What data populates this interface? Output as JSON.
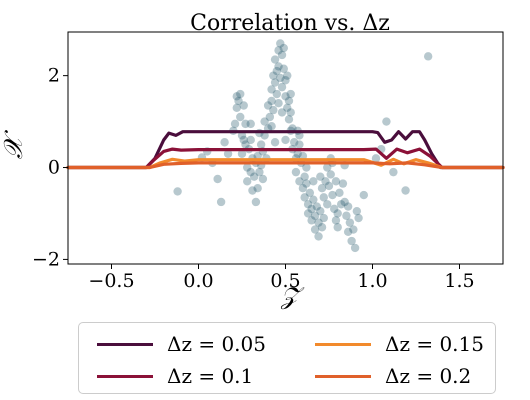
{
  "chart_data": {
    "type": "scatter",
    "title": "Correlation vs. Δz",
    "xlabel": "𝒵",
    "ylabel": "𝒳",
    "xlim": [
      -0.75,
      1.75
    ],
    "ylim": [
      -2.1,
      2.95
    ],
    "x_ticks": [
      -0.5,
      0.0,
      0.5,
      1.0,
      1.5
    ],
    "x_tick_labels": [
      "−0.5",
      "0.0",
      "0.5",
      "1.0",
      "1.5"
    ],
    "y_ticks": [
      -2,
      0,
      2
    ],
    "y_tick_labels": [
      "−2",
      "0",
      "2"
    ],
    "grid": false,
    "legend_placement": "below",
    "scatter": {
      "color": "#1f5566",
      "points": [
        [
          -0.12,
          -0.52
        ],
        [
          0.02,
          0.22
        ],
        [
          0.05,
          0.35
        ],
        [
          0.08,
          0.1
        ],
        [
          0.11,
          -0.25
        ],
        [
          0.13,
          -0.75
        ],
        [
          0.15,
          0.55
        ],
        [
          0.17,
          0.3
        ],
        [
          0.2,
          0.8
        ],
        [
          0.21,
          0.95
        ],
        [
          0.22,
          1.3
        ],
        [
          0.22,
          1.55
        ],
        [
          0.23,
          1.45
        ],
        [
          0.24,
          1.6
        ],
        [
          0.24,
          1.1
        ],
        [
          0.25,
          0.7
        ],
        [
          0.25,
          0.3
        ],
        [
          0.26,
          1.35
        ],
        [
          0.27,
          0.95
        ],
        [
          0.27,
          0.5
        ],
        [
          0.28,
          0.0
        ],
        [
          0.28,
          -0.3
        ],
        [
          0.29,
          0.4
        ],
        [
          0.3,
          -0.1
        ],
        [
          0.3,
          0.6
        ],
        [
          0.31,
          -0.5
        ],
        [
          0.31,
          0.2
        ],
        [
          0.32,
          -0.2
        ],
        [
          0.33,
          0.1
        ],
        [
          0.33,
          -0.75
        ],
        [
          0.34,
          -0.45
        ],
        [
          0.34,
          0.25
        ],
        [
          0.35,
          -0.1
        ],
        [
          0.36,
          0.5
        ],
        [
          0.36,
          0.05
        ],
        [
          0.37,
          -0.25
        ],
        [
          0.37,
          0.35
        ],
        [
          0.38,
          1.0
        ],
        [
          0.38,
          0.7
        ],
        [
          0.39,
          0.2
        ],
        [
          0.4,
          1.35
        ],
        [
          0.4,
          0.85
        ],
        [
          0.41,
          1.1
        ],
        [
          0.42,
          1.7
        ],
        [
          0.42,
          1.45
        ],
        [
          0.43,
          2.0
        ],
        [
          0.43,
          1.25
        ],
        [
          0.44,
          1.85
        ],
        [
          0.44,
          2.35
        ],
        [
          0.45,
          2.1
        ],
        [
          0.45,
          1.6
        ],
        [
          0.46,
          2.55
        ],
        [
          0.46,
          2.2
        ],
        [
          0.47,
          2.7
        ],
        [
          0.47,
          1.95
        ],
        [
          0.48,
          2.45
        ],
        [
          0.48,
          1.75
        ],
        [
          0.49,
          2.6
        ],
        [
          0.49,
          2.15
        ],
        [
          0.5,
          1.9
        ],
        [
          0.5,
          1.55
        ],
        [
          0.51,
          2.0
        ],
        [
          0.51,
          1.3
        ],
        [
          0.52,
          1.45
        ],
        [
          0.52,
          1.05
        ],
        [
          0.53,
          1.2
        ],
        [
          0.53,
          0.8
        ],
        [
          0.54,
          0.85
        ],
        [
          0.54,
          0.4
        ],
        [
          0.55,
          0.55
        ],
        [
          0.56,
          0.2
        ],
        [
          0.56,
          -0.1
        ],
        [
          0.57,
          0.8
        ],
        [
          0.57,
          0.3
        ],
        [
          0.58,
          0.5
        ],
        [
          0.58,
          -0.3
        ],
        [
          0.59,
          0.1
        ],
        [
          0.6,
          -0.45
        ],
        [
          0.6,
          0.25
        ],
        [
          0.61,
          -0.65
        ],
        [
          0.61,
          -0.2
        ],
        [
          0.62,
          -0.35
        ],
        [
          0.63,
          -0.8
        ],
        [
          0.63,
          -1.0
        ],
        [
          0.64,
          -0.55
        ],
        [
          0.65,
          -0.9
        ],
        [
          0.65,
          -1.15
        ],
        [
          0.66,
          -0.7
        ],
        [
          0.67,
          -1.05
        ],
        [
          0.67,
          -1.35
        ],
        [
          0.68,
          -0.85
        ],
        [
          0.69,
          -1.2
        ],
        [
          0.69,
          -1.5
        ],
        [
          0.7,
          -0.95
        ],
        [
          0.71,
          -1.3
        ],
        [
          0.71,
          -0.45
        ],
        [
          0.72,
          -0.65
        ],
        [
          0.72,
          -1.1
        ],
        [
          0.73,
          -0.3
        ],
        [
          0.74,
          -0.8
        ],
        [
          0.74,
          0.0
        ],
        [
          0.75,
          -0.4
        ],
        [
          0.76,
          0.2
        ],
        [
          0.76,
          -0.15
        ],
        [
          0.77,
          0.1
        ],
        [
          0.77,
          -0.6
        ],
        [
          0.78,
          -0.9
        ],
        [
          0.79,
          -1.15
        ],
        [
          0.8,
          -1.0
        ],
        [
          0.8,
          -1.3
        ],
        [
          0.81,
          -0.55
        ],
        [
          0.82,
          -0.8
        ],
        [
          0.83,
          -0.35
        ],
        [
          0.84,
          -0.75
        ],
        [
          0.85,
          -1.05
        ],
        [
          0.86,
          -0.85
        ],
        [
          0.86,
          -1.4
        ],
        [
          0.87,
          -1.2
        ],
        [
          0.88,
          -1.6
        ],
        [
          0.89,
          -1.35
        ],
        [
          0.9,
          -1.75
        ],
        [
          0.91,
          -0.95
        ],
        [
          0.92,
          -1.1
        ],
        [
          0.95,
          -0.6
        ],
        [
          1.02,
          0.2
        ],
        [
          1.05,
          0.4
        ],
        [
          1.08,
          1.0
        ],
        [
          1.12,
          -0.1
        ],
        [
          1.19,
          -0.5
        ],
        [
          1.32,
          2.42
        ],
        [
          0.3,
          0.95
        ],
        [
          0.26,
          0.6
        ],
        [
          0.44,
          0.55
        ],
        [
          0.5,
          0.6
        ],
        [
          0.62,
          0.0
        ],
        [
          0.35,
          0.75
        ],
        [
          0.48,
          1.2
        ],
        [
          0.53,
          1.6
        ],
        [
          0.46,
          1.4
        ],
        [
          0.42,
          0.9
        ],
        [
          0.58,
          0.7
        ],
        [
          0.7,
          -0.2
        ],
        [
          0.66,
          -0.3
        ],
        [
          0.79,
          -0.3
        ],
        [
          0.84,
          0.05
        ]
      ]
    },
    "series": [
      {
        "name": "Δz = 0.05",
        "color": "#4a0e3c",
        "x": [
          -0.75,
          -0.3,
          -0.25,
          -0.2,
          -0.17,
          -0.13,
          -0.09,
          -0.06,
          0.0,
          0.3,
          0.6,
          0.9,
          1.0,
          1.03,
          1.07,
          1.11,
          1.15,
          1.19,
          1.23,
          1.27,
          1.3,
          1.34,
          1.39,
          1.75
        ],
        "y": [
          0,
          0,
          0.2,
          0.6,
          0.75,
          0.7,
          0.78,
          0.78,
          0.78,
          0.78,
          0.78,
          0.78,
          0.78,
          0.76,
          0.55,
          0.6,
          0.78,
          0.62,
          0.78,
          0.78,
          0.6,
          0.3,
          0,
          0
        ]
      },
      {
        "name": "Δz = 0.1",
        "color": "#8b1138",
        "x": [
          -0.75,
          -0.3,
          -0.26,
          -0.2,
          -0.15,
          -0.1,
          0.0,
          0.5,
          0.95,
          1.02,
          1.08,
          1.14,
          1.2,
          1.27,
          1.33,
          1.4,
          1.75
        ],
        "y": [
          0,
          0,
          0.15,
          0.35,
          0.4,
          0.38,
          0.39,
          0.39,
          0.39,
          0.4,
          0.2,
          0.4,
          0.32,
          0.4,
          0.25,
          0,
          0
        ]
      },
      {
        "name": "Δz = 0.15",
        "color": "#f28a2c",
        "x": [
          -0.75,
          -0.28,
          -0.22,
          -0.15,
          -0.08,
          0.0,
          0.5,
          0.95,
          1.05,
          1.12,
          1.18,
          1.25,
          1.32,
          1.4,
          1.75
        ],
        "y": [
          0,
          0,
          0.1,
          0.18,
          0.14,
          0.17,
          0.17,
          0.17,
          0.05,
          0.18,
          0.08,
          0.17,
          0.1,
          0,
          0
        ]
      },
      {
        "name": "Δz = 0.2",
        "color": "#e0602a",
        "x": [
          -0.75,
          -0.28,
          -0.2,
          -0.1,
          0.0,
          0.5,
          1.0,
          1.1,
          1.2,
          1.3,
          1.4,
          1.75
        ],
        "y": [
          0,
          0,
          0.07,
          0.09,
          0.1,
          0.1,
          0.1,
          0.08,
          0.1,
          0.06,
          0,
          0
        ]
      }
    ]
  }
}
